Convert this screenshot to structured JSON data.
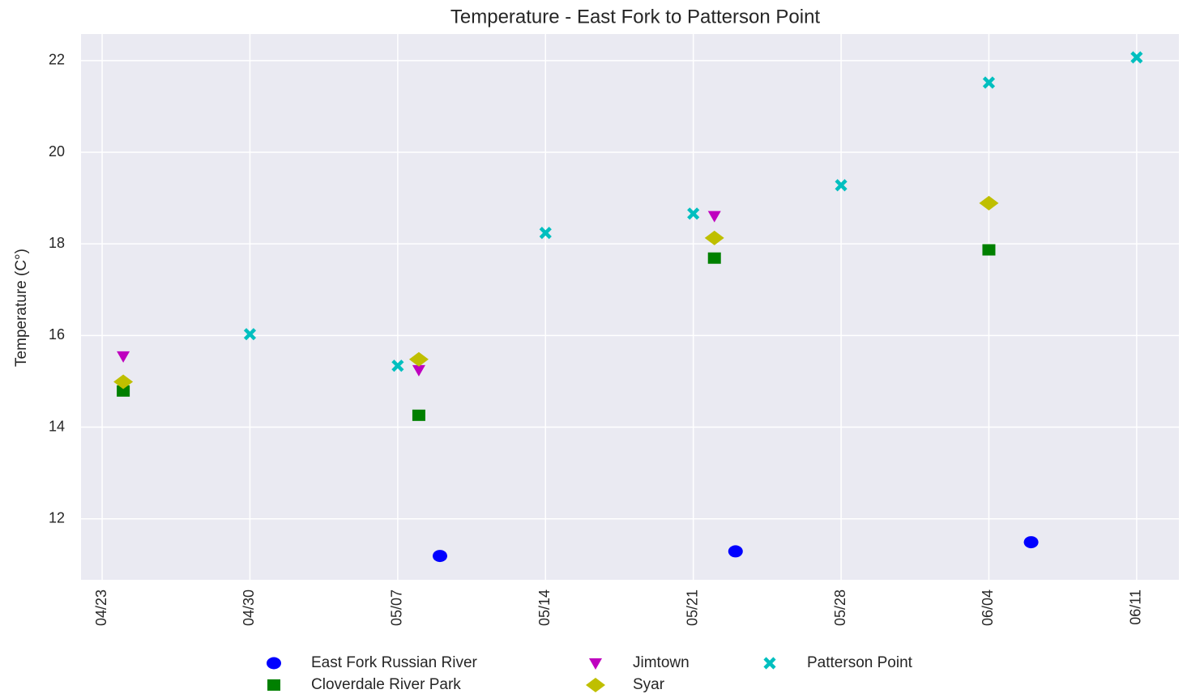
{
  "chart_data": {
    "type": "scatter",
    "title": "Temperature - East Fork to Patterson Point",
    "y_label": "Temperature (C°)",
    "series": [
      {
        "name": "East Fork Russian River",
        "color": "#0000ff",
        "marker": "o",
        "x": [
          "05/09",
          "05/23",
          "06/06"
        ],
        "values": [
          11.19,
          11.29,
          11.49
        ]
      },
      {
        "name": "Cloverdale River Park",
        "color": "#008000",
        "marker": "s",
        "x": [
          "04/24",
          "05/08",
          "05/22",
          "06/04"
        ],
        "values": [
          14.79,
          14.26,
          17.69,
          17.87
        ]
      },
      {
        "name": "Jimtown",
        "color": "#bf00bf",
        "marker": "v",
        "x": [
          "04/24",
          "05/08",
          "05/22"
        ],
        "values": [
          15.55,
          15.25,
          18.61
        ]
      },
      {
        "name": "Syar",
        "color": "#bfbf00",
        "marker": "D",
        "x": [
          "04/24",
          "05/08",
          "05/22",
          "06/04"
        ],
        "values": [
          14.99,
          15.48,
          18.13,
          18.89
        ]
      },
      {
        "name": "Patterson Point",
        "color": "#00bfbf",
        "marker": "X",
        "x": [
          "04/30",
          "05/07",
          "05/14",
          "05/21",
          "05/28",
          "06/04",
          "06/11"
        ],
        "values": [
          16.03,
          15.34,
          18.24,
          18.66,
          19.28,
          21.52,
          22.07
        ]
      }
    ],
    "xlim": [
      "04/22",
      "06/13"
    ],
    "xticks": [
      "04/23",
      "04/30",
      "05/07",
      "05/14",
      "05/21",
      "05/28",
      "06/04",
      "06/11"
    ],
    "ylim": [
      10.67,
      22.58
    ],
    "yticks": [
      12,
      14,
      16,
      18,
      20,
      22
    ],
    "grid": true,
    "legend": "bottom"
  }
}
